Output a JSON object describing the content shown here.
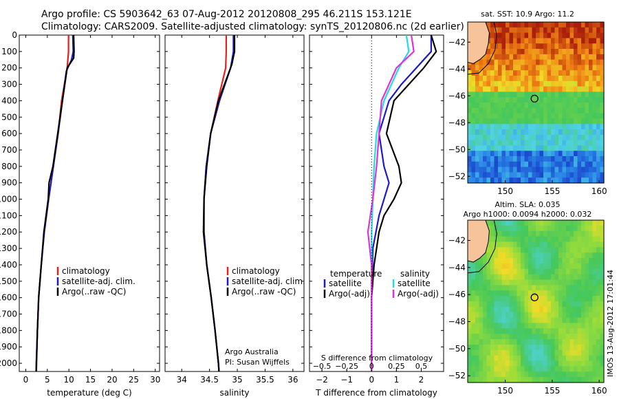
{
  "header": {
    "line1": "Argo profile: CS 5903642_63 07-Aug-2012 20120808_295 46.211S 153.121E",
    "line2": "Climatology: CARS2009. Satellite-adjusted climatology: synTS_20120806.nc (2d earlier)"
  },
  "colors": {
    "climatology": "#e8201c",
    "satellite": "#1a1acc",
    "argo": "#000000",
    "sat_salinity": "#22dddd",
    "argo_salinity": "#e030e0",
    "land": "#f6c39a"
  },
  "credit": {
    "org": "Argo Australia",
    "pi": "PI: Susan Wijffels",
    "vertical": "IMOS 13-Aug-2012 17:01:44"
  },
  "depth_ticks": [
    0,
    100,
    200,
    300,
    400,
    500,
    600,
    700,
    800,
    900,
    1000,
    1100,
    1200,
    1300,
    1400,
    1500,
    1600,
    1700,
    1800,
    1900,
    2000
  ],
  "chart_data": [
    {
      "type": "line",
      "id": "temperature",
      "xlabel": "temperature (deg C)",
      "xlim": [
        -1.5,
        31
      ],
      "ylim": [
        2050,
        0
      ],
      "xticks": [
        0,
        5,
        10,
        15,
        20,
        25,
        30
      ],
      "legend": [
        "climatology",
        "satellite-adj. clim.",
        "Argo(..raw -QC)"
      ],
      "series": [
        {
          "name": "climatology",
          "color": "red",
          "points": [
            [
              9.9,
              0
            ],
            [
              9.9,
              100
            ],
            [
              9.6,
              200
            ],
            [
              8.3,
              400
            ],
            [
              7.5,
              600
            ],
            [
              6.4,
              800
            ],
            [
              5.3,
              1000
            ],
            [
              4.3,
              1200
            ],
            [
              3.6,
              1400
            ],
            [
              3.0,
              1600
            ],
            [
              2.7,
              1800
            ],
            [
              2.45,
              2000
            ],
            [
              2.4,
              2050
            ]
          ]
        },
        {
          "name": "satellite-adj. clim.",
          "color": "blue",
          "points": [
            [
              10.9,
              0
            ],
            [
              11.0,
              100
            ],
            [
              10.6,
              150
            ],
            [
              9.4,
              220
            ],
            [
              8.5,
              400
            ],
            [
              7.5,
              600
            ],
            [
              6.4,
              800
            ],
            [
              5.3,
              1000
            ],
            [
              4.3,
              1200
            ],
            [
              3.6,
              1400
            ],
            [
              3.0,
              1600
            ],
            [
              2.7,
              1800
            ],
            [
              2.45,
              2000
            ],
            [
              2.4,
              2050
            ]
          ]
        },
        {
          "name": "Argo(..raw -QC)",
          "color": "black",
          "points": [
            [
              11.1,
              0
            ],
            [
              11.2,
              100
            ],
            [
              11.1,
              140
            ],
            [
              9.6,
              200
            ],
            [
              8.5,
              400
            ],
            [
              7.4,
              600
            ],
            [
              6.3,
              800
            ],
            [
              5.4,
              900
            ],
            [
              5.2,
              1000
            ],
            [
              4.2,
              1200
            ],
            [
              3.6,
              1400
            ],
            [
              3.0,
              1600
            ],
            [
              2.7,
              1800
            ],
            [
              2.5,
              2000
            ],
            [
              2.45,
              2050
            ]
          ]
        }
      ]
    },
    {
      "type": "line",
      "id": "salinity",
      "xlabel": "salinity",
      "xlim": [
        33.7,
        36.2
      ],
      "ylim": [
        2050,
        0
      ],
      "xticks": [
        34,
        34.5,
        35,
        35.5,
        36
      ],
      "legend": [
        "climatology",
        "satellite-adj. clim.",
        "Argo(..raw -QC)"
      ],
      "series": [
        {
          "name": "climatology",
          "color": "red",
          "points": [
            [
              34.8,
              0
            ],
            [
              34.8,
              100
            ],
            [
              34.79,
              200
            ],
            [
              34.65,
              400
            ],
            [
              34.52,
              600
            ],
            [
              34.44,
              800
            ],
            [
              34.4,
              1000
            ],
            [
              34.4,
              1200
            ],
            [
              34.45,
              1400
            ],
            [
              34.53,
              1600
            ],
            [
              34.6,
              1800
            ],
            [
              34.66,
              2000
            ],
            [
              34.67,
              2050
            ]
          ]
        },
        {
          "name": "satellite-adj. clim.",
          "color": "blue",
          "points": [
            [
              34.93,
              0
            ],
            [
              34.93,
              100
            ],
            [
              34.88,
              200
            ],
            [
              34.68,
              400
            ],
            [
              34.52,
              600
            ],
            [
              34.44,
              800
            ],
            [
              34.4,
              1000
            ],
            [
              34.4,
              1200
            ],
            [
              34.45,
              1400
            ],
            [
              34.53,
              1600
            ],
            [
              34.6,
              1800
            ],
            [
              34.66,
              2000
            ],
            [
              34.67,
              2050
            ]
          ]
        },
        {
          "name": "Argo(..raw -QC)",
          "color": "black",
          "points": [
            [
              34.95,
              0
            ],
            [
              34.95,
              100
            ],
            [
              34.9,
              180
            ],
            [
              34.66,
              400
            ],
            [
              34.52,
              600
            ],
            [
              34.45,
              800
            ],
            [
              34.4,
              1000
            ],
            [
              34.39,
              1200
            ],
            [
              34.45,
              1400
            ],
            [
              34.53,
              1600
            ],
            [
              34.6,
              1800
            ],
            [
              34.66,
              2000
            ],
            [
              34.67,
              2050
            ]
          ]
        }
      ]
    },
    {
      "type": "line",
      "id": "difference",
      "xlabel": "T difference from climatology",
      "xlabel_top": "S difference from climatology",
      "xlim": [
        -2.5,
        2.9
      ],
      "ylim": [
        2050,
        0
      ],
      "xticks": [
        -2,
        -1,
        0,
        1,
        2
      ],
      "xticks_top": [
        -0.5,
        -0.25,
        0,
        0.25,
        0.5
      ],
      "xticks_top_labels": [
        "−0.5",
        "−0.25",
        "0",
        "0.25",
        "0.5"
      ],
      "xticks_labels": [
        "−2",
        "−1",
        "0",
        "1",
        "2"
      ],
      "legend_titles": [
        "temperature",
        "salinity"
      ],
      "legend": [
        "satellite",
        "Argo(-adj)",
        "satellite",
        "Argo(-adj)"
      ],
      "series": [
        {
          "name": "satellite",
          "group": "temperature",
          "color": "blue",
          "points": [
            [
              2.4,
              0
            ],
            [
              2.4,
              100
            ],
            [
              1.8,
              200
            ],
            [
              1.2,
              300
            ],
            [
              0.7,
              400
            ],
            [
              0.3,
              600
            ],
            [
              0.5,
              800
            ],
            [
              0.7,
              900
            ],
            [
              0.3,
              1100
            ],
            [
              0.05,
              1300
            ],
            [
              0,
              1600
            ],
            [
              0,
              2050
            ]
          ]
        },
        {
          "name": "Argo(-adj)",
          "group": "temperature",
          "color": "black",
          "points": [
            [
              2.4,
              0
            ],
            [
              2.5,
              50
            ],
            [
              2.6,
              100
            ],
            [
              2.1,
              200
            ],
            [
              1.5,
              300
            ],
            [
              0.9,
              400
            ],
            [
              0.6,
              600
            ],
            [
              1.1,
              800
            ],
            [
              1.2,
              900
            ],
            [
              0.9,
              1000
            ],
            [
              0.5,
              1100
            ],
            [
              0.3,
              1200
            ],
            [
              0.1,
              1400
            ],
            [
              0,
              1600
            ],
            [
              0,
              2050
            ]
          ]
        },
        {
          "name": "satellite",
          "group": "salinity",
          "color": "cyan",
          "points": [
            [
              1.4,
              0
            ],
            [
              1.5,
              100
            ],
            [
              1.1,
              200
            ],
            [
              0.5,
              400
            ],
            [
              0.2,
              600
            ],
            [
              0.1,
              800
            ],
            [
              0.05,
              1000
            ],
            [
              0,
              1200
            ],
            [
              0,
              2050
            ]
          ]
        },
        {
          "name": "Argo(-adj)",
          "group": "salinity",
          "color": "magenta",
          "points": [
            [
              1.6,
              0
            ],
            [
              1.7,
              100
            ],
            [
              1.0,
              200
            ],
            [
              0.4,
              400
            ],
            [
              0.3,
              600
            ],
            [
              0.2,
              800
            ],
            [
              0.05,
              1000
            ],
            [
              -0.15,
              1200
            ],
            [
              0,
              1400
            ],
            [
              0,
              2050
            ]
          ]
        }
      ]
    },
    {
      "type": "heatmap",
      "id": "sst-map",
      "title": "sat. SST: 10.9 Argo: 11.2",
      "xlim": [
        146,
        160.5
      ],
      "ylim": [
        -52.5,
        -40.5
      ],
      "xticks": [
        150,
        155,
        160
      ],
      "yticks": [
        -42,
        -44,
        -46,
        -48,
        -50,
        -52
      ],
      "marker": {
        "lon": 153.121,
        "lat": -46.211
      }
    },
    {
      "type": "heatmap",
      "id": "sla-map",
      "title": "Altim. SLA: 0.035",
      "subtitle": "Argo h1000: 0.0094 h2000: 0.032",
      "xlim": [
        146,
        160.5
      ],
      "ylim": [
        -52.5,
        -40.5
      ],
      "xticks": [
        150,
        155,
        160
      ],
      "yticks": [
        -42,
        -44,
        -46,
        -48,
        -50,
        -52
      ],
      "marker": {
        "lon": 153.121,
        "lat": -46.211
      }
    }
  ]
}
